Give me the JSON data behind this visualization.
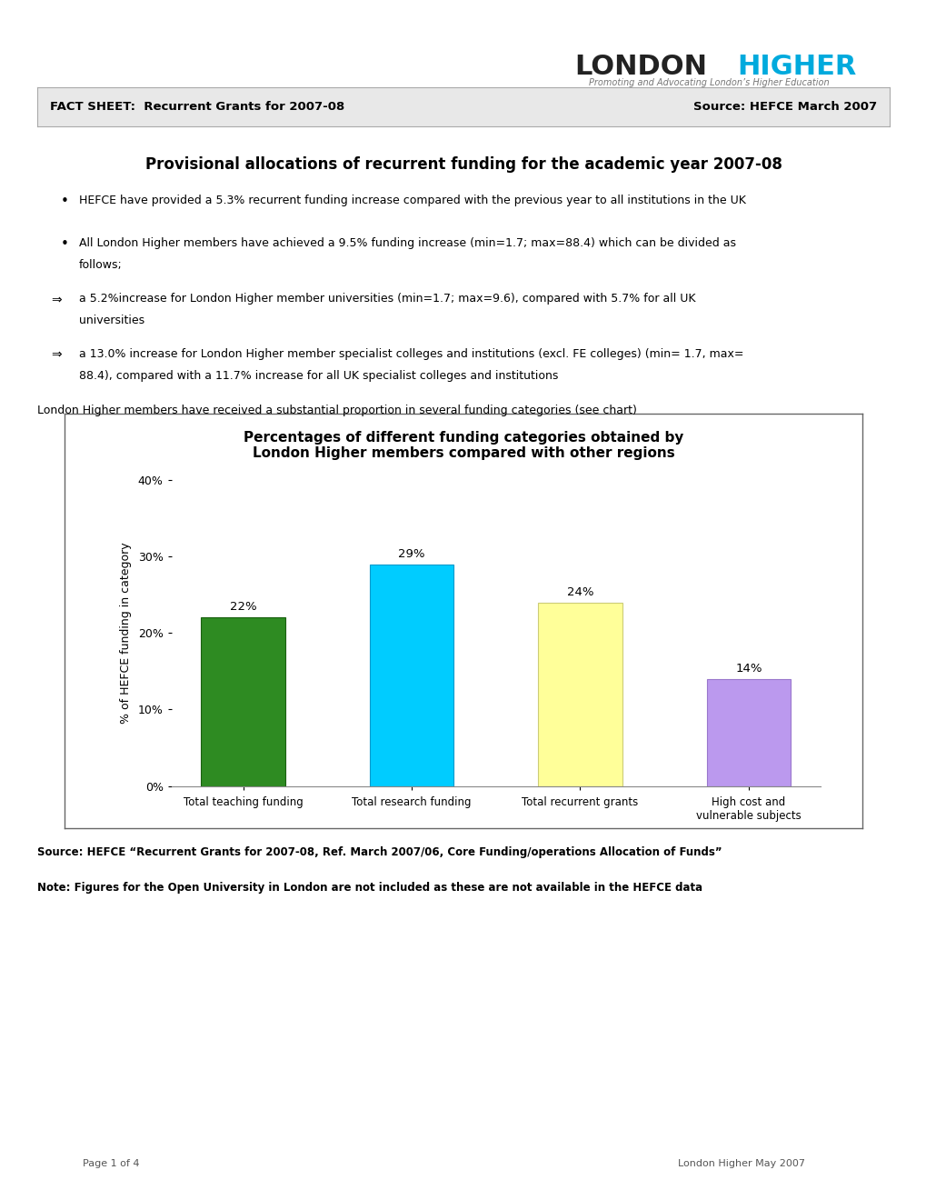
{
  "title_main": "Provisional allocations of recurrent funding for the academic year 2007-08",
  "fact_sheet_label": "FACT SHEET:  Recurrent Grants for 2007-08",
  "source_label": "Source: HEFCE March 2007",
  "logo_london": "LONDON",
  "logo_higher": "HIGHER",
  "logo_subtitle": "Promoting and Advocating London’s Higher Education",
  "bullet1": "HEFCE have provided a 5.3% recurrent funding increase compared with the previous year to all institutions in the UK",
  "bullet2_line1": "All London Higher members have achieved a 9.5% funding increase (min=1.7; max=88.4) which can be divided as",
  "bullet2_line2": "follows;",
  "arrow1_line1": "a 5.2%increase for London Higher member universities (min=1.7; max=9.6), compared with 5.7% for all UK",
  "arrow1_line2": "universities",
  "arrow2_line1": "a 13.0% increase for London Higher member specialist colleges and institutions (excl. FE colleges) (min= 1.7, max=",
  "arrow2_line2": "88.4), compared with a 11.7% increase for all UK specialist colleges and institutions",
  "intro_text": "London Higher members have received a substantial proportion in several funding categories (see chart)",
  "chart_title": "Percentages of different funding categories obtained by\nLondon Higher members compared with other regions",
  "categories": [
    "Total teaching funding",
    "Total research funding",
    "Total recurrent grants",
    "High cost and\nvulnerable subjects"
  ],
  "values": [
    22,
    29,
    24,
    14
  ],
  "bar_colors": [
    "#2E8B22",
    "#00CCFF",
    "#FFFF99",
    "#BB99EE"
  ],
  "bar_edge_colors": [
    "#1a6010",
    "#0099CC",
    "#CCCC77",
    "#9977CC"
  ],
  "ylabel": "% of HEFCE funding in category",
  "ylim": [
    0,
    40
  ],
  "yticks": [
    0,
    10,
    20,
    30,
    40
  ],
  "ytick_labels": [
    "0%",
    "10%",
    "20%",
    "30%",
    "40%"
  ],
  "source_note": "Source: HEFCE “Recurrent Grants for 2007-08, Ref. March 2007/06, Core Funding/operations Allocation of Funds”",
  "note_text": "Note: Figures for the Open University in London are not included as these are not available in the HEFCE data",
  "footer_left": "Page 1 of 4",
  "footer_right": "London Higher May 2007",
  "background_color": "#ffffff",
  "header_box_color": "#e8e8e8"
}
